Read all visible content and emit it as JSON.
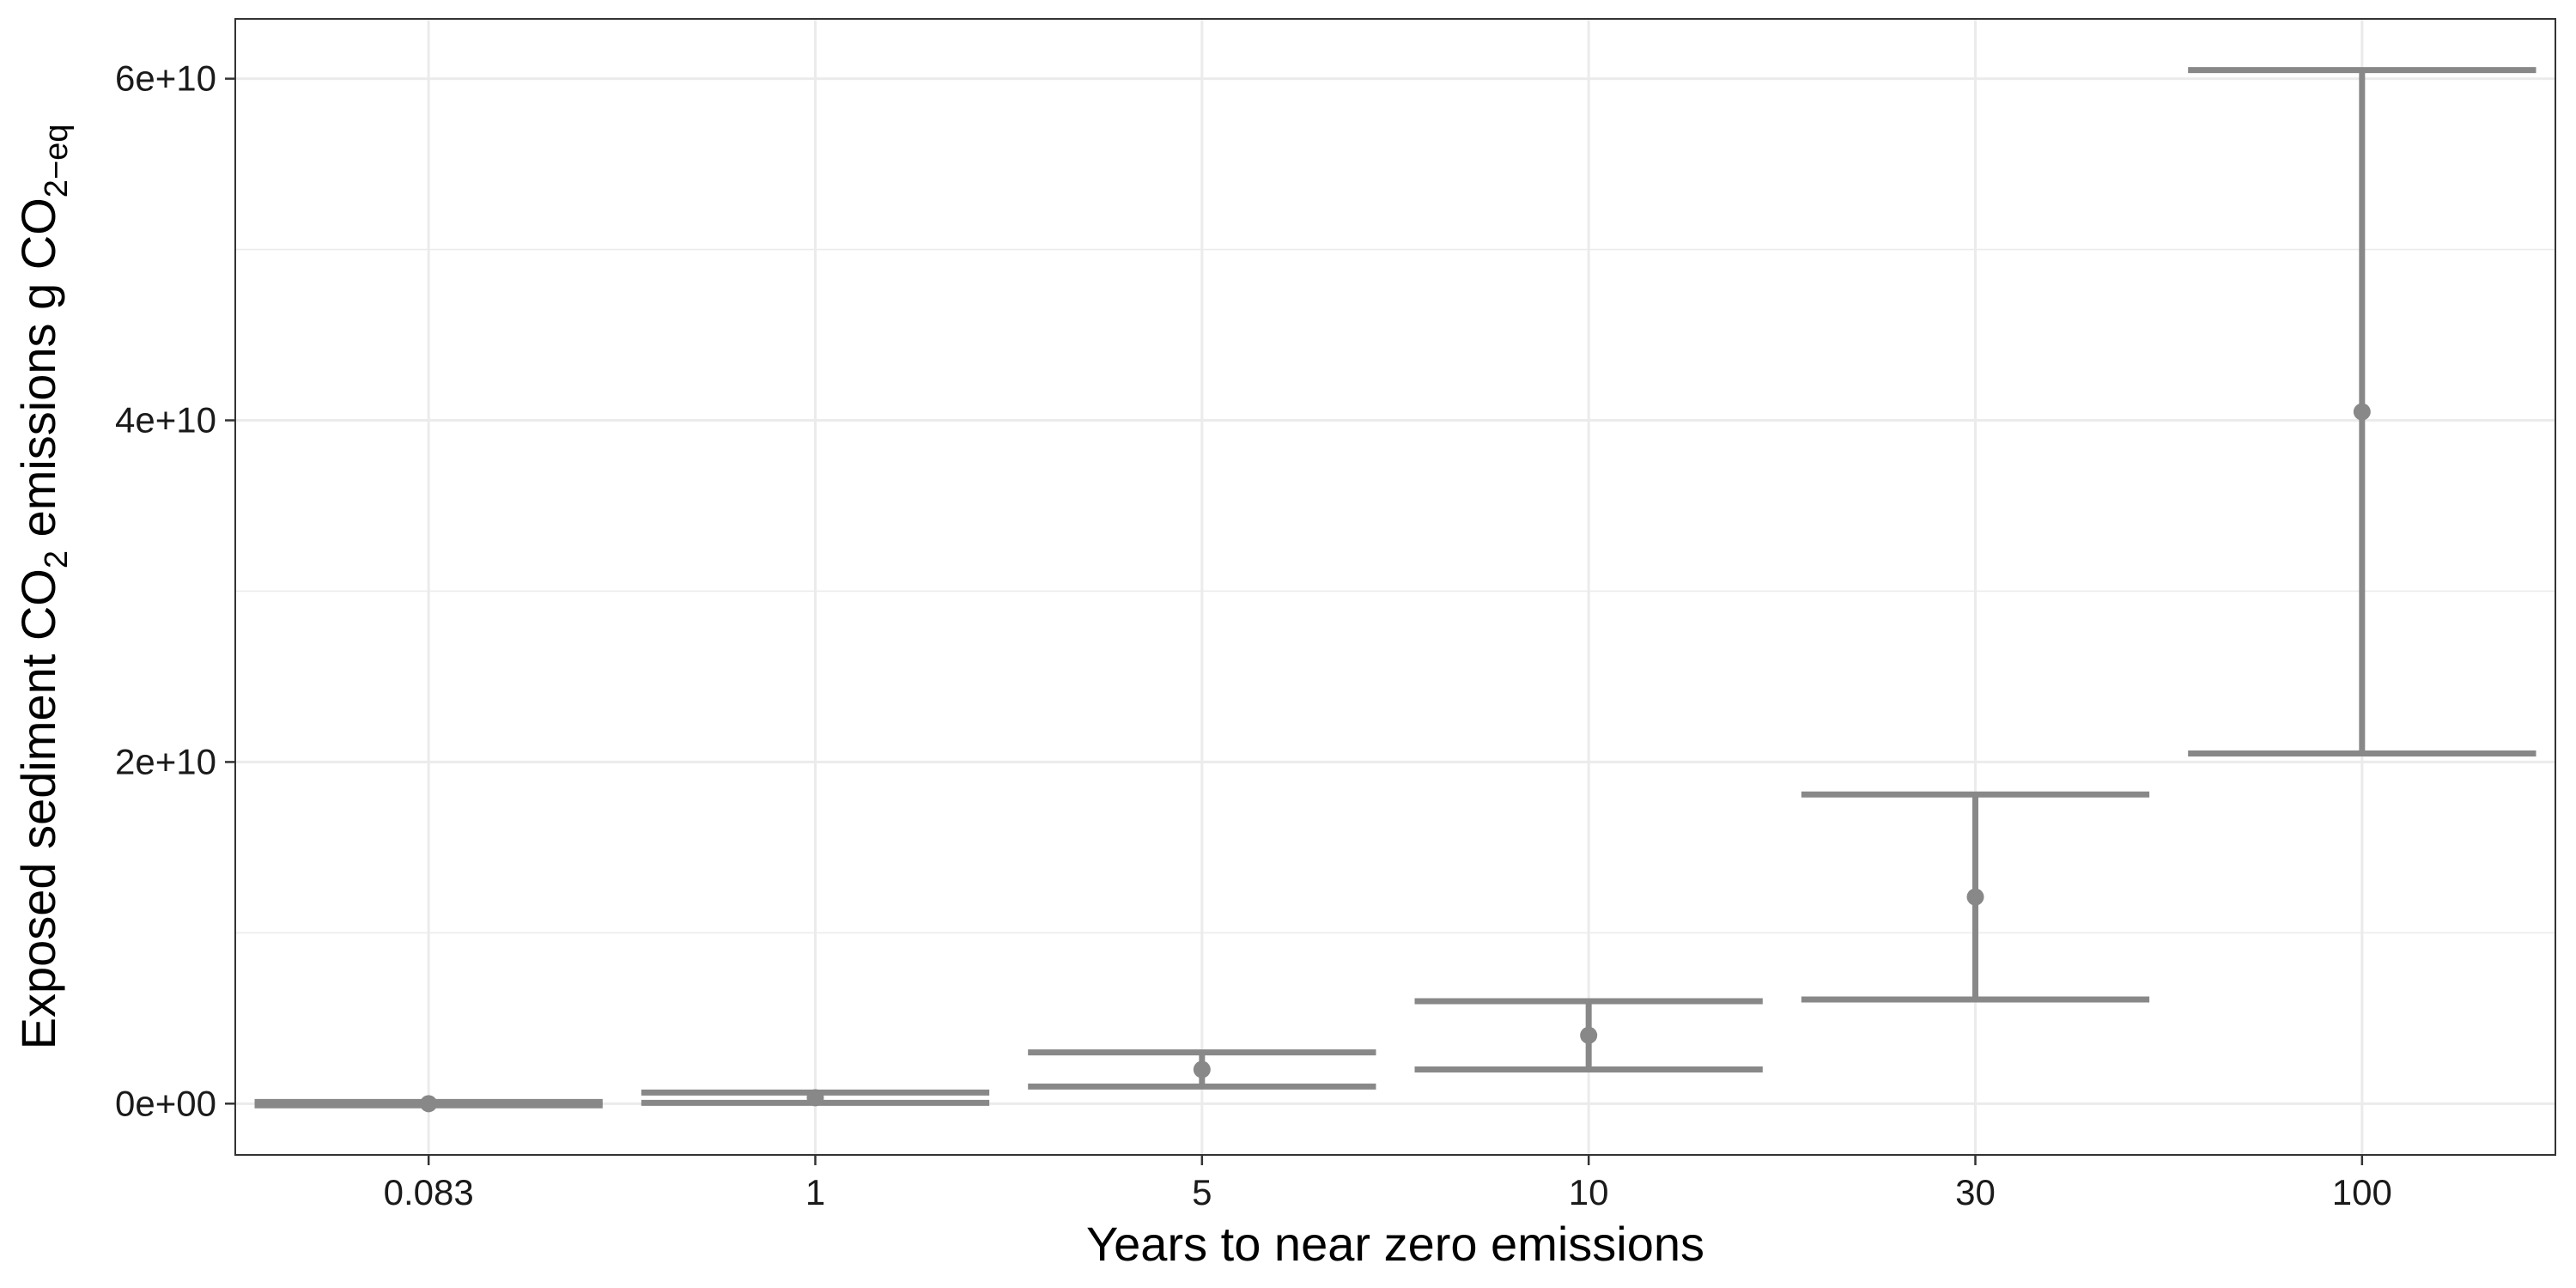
{
  "chart_data": {
    "type": "errorbar",
    "categories": [
      "0.083",
      "1",
      "5",
      "10",
      "30",
      "100"
    ],
    "series": [
      {
        "points": [
          {
            "x": "0.083",
            "y": 0,
            "ymin": -100000000,
            "ymax": 100000000
          },
          {
            "x": "1",
            "y": 350000000,
            "ymin": 50000000,
            "ymax": 650000000
          },
          {
            "x": "5",
            "y": 2000000000,
            "ymin": 1000000000,
            "ymax": 3000000000
          },
          {
            "x": "10",
            "y": 4000000000,
            "ymin": 2000000000,
            "ymax": 6000000000
          },
          {
            "x": "30",
            "y": 12100000000,
            "ymin": 6100000000,
            "ymax": 18100000000
          },
          {
            "x": "100",
            "y": 40500000000,
            "ymin": 20500000000,
            "ymax": 60500000000
          }
        ]
      }
    ],
    "yticks": [
      0,
      20000000000,
      40000000000,
      60000000000
    ],
    "ytick_labels": [
      "0e+00",
      "2e+10",
      "4e+10",
      "6e+10"
    ],
    "ylim": [
      -3000000000,
      63500000000
    ],
    "xlabel": "Years to near zero emissions",
    "ylabel": {
      "part1": "Exposed sediment CO",
      "sub1": "2",
      "part2": " emissions g CO",
      "sub2": "2−eq"
    },
    "grid": true,
    "legend": "none",
    "colors": {
      "mark": "#888888",
      "grid": "#ebebeb",
      "border": "#333333"
    }
  }
}
